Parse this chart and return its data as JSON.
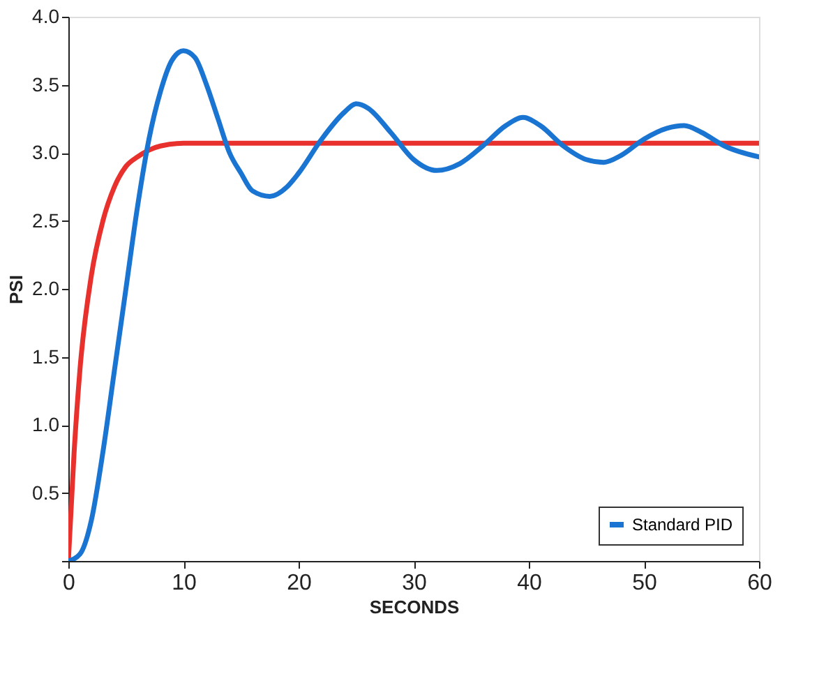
{
  "chart_data": {
    "type": "line",
    "xlabel": "SECONDS",
    "ylabel": "PSI",
    "xlim": [
      0,
      60
    ],
    "xticks": [
      0,
      10,
      20,
      30,
      40,
      50,
      60
    ],
    "ylim": [
      0,
      4
    ],
    "yticks": [
      {
        "value": 0,
        "label": null
      },
      0.5,
      {
        "value": 1,
        "label": "1.0"
      },
      1.5,
      {
        "value": 2,
        "label": "2.0"
      },
      2.5,
      {
        "value": 3,
        "label": "3.0"
      },
      3.5,
      {
        "value": 4,
        "label": "4.0"
      }
    ],
    "grid": false,
    "legend": "bottom right",
    "marker": "none",
    "line_style": "solid",
    "series": [
      {
        "color": "#e8302c",
        "x": [
          0,
          0.5,
          1,
          2,
          3,
          4,
          5,
          6,
          7,
          8,
          10,
          60
        ],
        "values": [
          0,
          0.8,
          1.4,
          2.1,
          2.5,
          2.75,
          2.9,
          2.97,
          3.02,
          3.05,
          3.07,
          3.07
        ]
      },
      {
        "name": "Standard PID",
        "color": "#1a74d2",
        "x": [
          0,
          1,
          2,
          3,
          4,
          5,
          6,
          7,
          8,
          9,
          10,
          11,
          12,
          13,
          14,
          15,
          16,
          17.5,
          19,
          20,
          22,
          24,
          25,
          26,
          28,
          30,
          32,
          34,
          36,
          38,
          39.5,
          41,
          43,
          45,
          46.5,
          48,
          50,
          52,
          53.5,
          55,
          57,
          60
        ],
        "values": [
          0,
          0.05,
          0.3,
          0.8,
          1.4,
          2.0,
          2.6,
          3.1,
          3.45,
          3.68,
          3.75,
          3.7,
          3.5,
          3.25,
          3.0,
          2.85,
          2.72,
          2.68,
          2.75,
          2.85,
          3.1,
          3.3,
          3.36,
          3.33,
          3.15,
          2.95,
          2.87,
          2.92,
          3.05,
          3.2,
          3.26,
          3.2,
          3.05,
          2.95,
          2.93,
          2.98,
          3.1,
          3.18,
          3.2,
          3.15,
          3.05,
          2.97
        ]
      }
    ]
  }
}
